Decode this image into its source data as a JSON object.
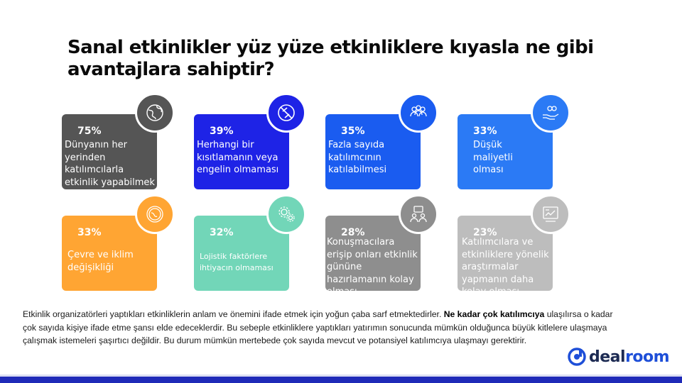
{
  "title": "Sanal etkinlikler yüz yüze etkinliklere kıyasla ne gibi avantajlara sahiptir?",
  "cards": [
    {
      "percent": "75%",
      "text": "Dünyanın her yerinden katılımcılarla etkinlik yapabilmek",
      "color": "#555555",
      "icon": "globe-icon"
    },
    {
      "percent": "39%",
      "text": "Herhangi bir kısıtlamanın veya engelin olmaması",
      "color": "#1e23e6",
      "icon": "no-restriction-icon"
    },
    {
      "percent": "35%",
      "text": "Fazla sayıda katılımcının katılabilmesi",
      "color": "#1a5cf0",
      "icon": "people-group-icon"
    },
    {
      "percent": "33%",
      "text": "Düşük maliyetli olması",
      "color": "#2b7af5",
      "icon": "money-hand-icon"
    },
    {
      "percent": "33%",
      "text": "Çevre ve iklim değişikliği",
      "color": "#ffa533",
      "icon": "eco-globe-icon"
    },
    {
      "percent": "32%",
      "text": "Lojistik faktörlere ihtiyacın olmaması",
      "color": "#72d6b8",
      "icon": "gears-icon"
    },
    {
      "percent": "28%",
      "text": "Konuşmacılara erişip onları etkinlik gününe hazırlamanın kolay olması",
      "color": "#8e8e8e",
      "icon": "speakers-icon"
    },
    {
      "percent": "23%",
      "text": "Katılımcılara ve etkinliklere yönelik araştırmalar yapmanın  daha kolay olması",
      "color": "#bdbdbd",
      "icon": "research-chart-icon"
    }
  ],
  "body": {
    "part1": "Etkinlik organizatörleri yaptıkları etkinliklerin anlam ve önemini ifade etmek için yoğun çaba sarf etmektedirler. ",
    "bold": "Ne kadar çok katılımcıya",
    "part2": " ulaşılırsa o kadar çok sayıda kişiye ifade etme şansı elde edeceklerdir. Bu sebeple etkinliklere yaptıkları yatırımın sonucunda mümkün olduğunca büyük kitlelere ulaşmaya çalışmak istemeleri şaşırtıcı değildir. Bu durum mümkün mertebede çok sayıda mevcut ve potansiyel katılımcıya ulaşmayı gerektirir."
  },
  "logo": {
    "part1": "deal",
    "part2": "room",
    "color": "#1e4fd8"
  },
  "footer_color": "#1f2ab8"
}
